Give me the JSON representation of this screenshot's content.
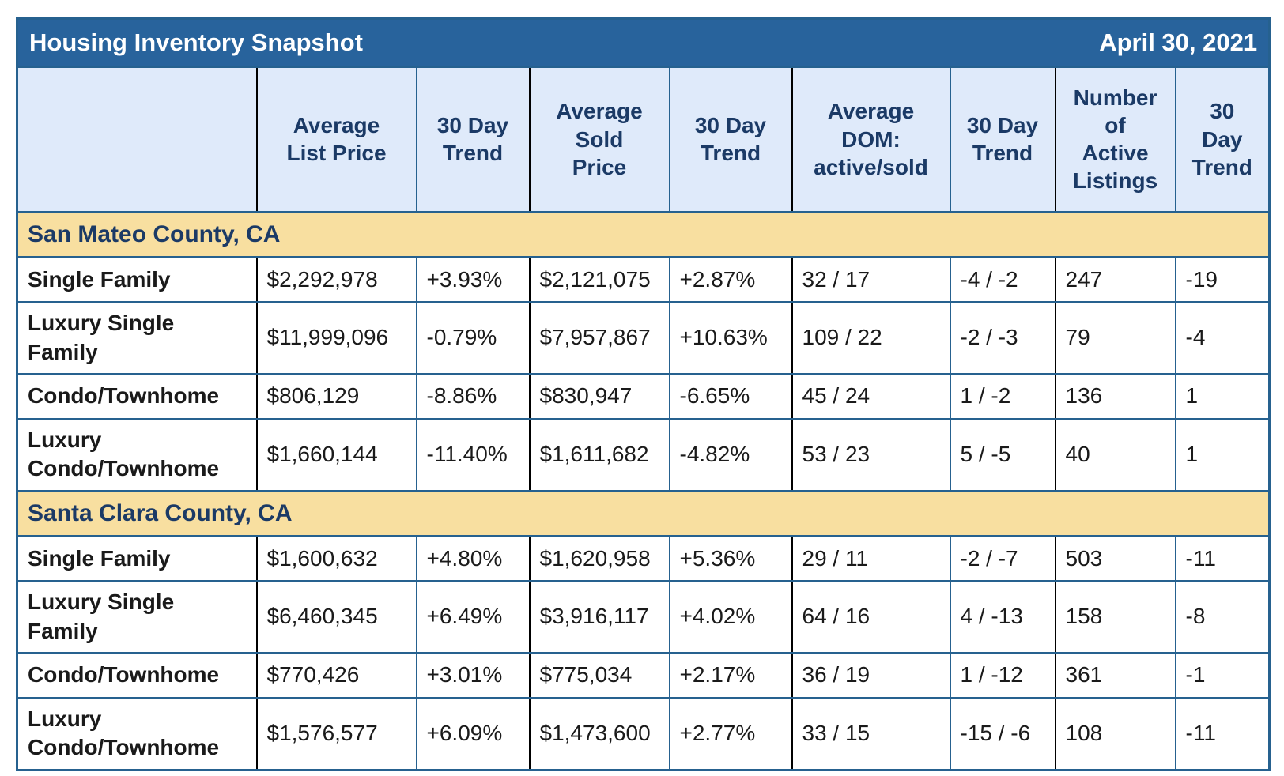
{
  "title_bar": {
    "title": "Housing Inventory Snapshot",
    "date": "April 30, 2021"
  },
  "columns": [
    "",
    "Average\nList Price",
    "30 Day\nTrend",
    "Average\nSold\nPrice",
    "30 Day\nTrend",
    "Average\nDOM:\nactive/sold",
    "30 Day\nTrend",
    "Number\nof\nActive\nListings",
    "30\nDay\nTrend"
  ],
  "colors": {
    "title_bar_bg": "#28639C",
    "column_header_bg": "#DFEAFA",
    "section_band_bg": "#F8DFA0",
    "navy_text": "#1B3A66",
    "positive_trend": "#388226",
    "negative_trend": "#EC3826",
    "border_blue": "#26618F",
    "border_black": "#000000"
  },
  "sections": [
    {
      "name": "San Mateo County, CA",
      "rows": [
        {
          "label": "Single Family",
          "avg_list_price": "$2,292,978",
          "list_trend": "+3.93%",
          "list_trend_dir": "up",
          "avg_sold_price": "$2,121,075",
          "sold_trend": "+2.87%",
          "sold_trend_dir": "up",
          "dom": "32 / 17",
          "dom_trend": "-4 / -2",
          "active_listings": "247",
          "listings_trend": "-19"
        },
        {
          "label": "Luxury Single\nFamily",
          "avg_list_price": "$11,999,096",
          "list_trend": "-0.79%",
          "list_trend_dir": "down",
          "avg_sold_price": "$7,957,867",
          "sold_trend": "+10.63%",
          "sold_trend_dir": "up",
          "dom": "109 / 22",
          "dom_trend": "-2 / -3",
          "active_listings": "79",
          "listings_trend": "-4"
        },
        {
          "label": "Condo/Townhome",
          "avg_list_price": "$806,129",
          "list_trend": "-8.86%",
          "list_trend_dir": "down",
          "avg_sold_price": "$830,947",
          "sold_trend": "-6.65%",
          "sold_trend_dir": "down",
          "dom": "45 / 24",
          "dom_trend": "1 / -2",
          "active_listings": "136",
          "listings_trend": "1"
        },
        {
          "label": "Luxury\nCondo/Townhome",
          "avg_list_price": "$1,660,144",
          "list_trend": "-11.40%",
          "list_trend_dir": "down",
          "avg_sold_price": "$1,611,682",
          "sold_trend": "-4.82%",
          "sold_trend_dir": "down",
          "dom": "53 / 23",
          "dom_trend": "5 / -5",
          "active_listings": "40",
          "listings_trend": "1"
        }
      ]
    },
    {
      "name": "Santa Clara County, CA",
      "rows": [
        {
          "label": "Single Family",
          "avg_list_price": "$1,600,632",
          "list_trend": "+4.80%",
          "list_trend_dir": "up",
          "avg_sold_price": "$1,620,958",
          "sold_trend": "+5.36%",
          "sold_trend_dir": "up",
          "dom": "29 / 11",
          "dom_trend": "-2 / -7",
          "active_listings": "503",
          "listings_trend": "-11"
        },
        {
          "label": "Luxury Single\nFamily",
          "avg_list_price": "$6,460,345",
          "list_trend": "+6.49%",
          "list_trend_dir": "up",
          "avg_sold_price": "$3,916,117",
          "sold_trend": "+4.02%",
          "sold_trend_dir": "up",
          "dom": "64 / 16",
          "dom_trend": "4 / -13",
          "active_listings": "158",
          "listings_trend": "-8"
        },
        {
          "label": "Condo/Townhome",
          "avg_list_price": "$770,426",
          "list_trend": "+3.01%",
          "list_trend_dir": "up",
          "avg_sold_price": "$775,034",
          "sold_trend": "+2.17%",
          "sold_trend_dir": "up",
          "dom": "36 / 19",
          "dom_trend": "1 / -12",
          "active_listings": "361",
          "listings_trend": "-1"
        },
        {
          "label": "Luxury\nCondo/Townhome",
          "avg_list_price": "$1,576,577",
          "list_trend": "+6.09%",
          "list_trend_dir": "up",
          "avg_sold_price": "$1,473,600",
          "sold_trend": "+2.77%",
          "sold_trend_dir": "up",
          "dom": "33 / 15",
          "dom_trend": "-15 / -6",
          "active_listings": "108",
          "listings_trend": "-11"
        }
      ]
    }
  ]
}
